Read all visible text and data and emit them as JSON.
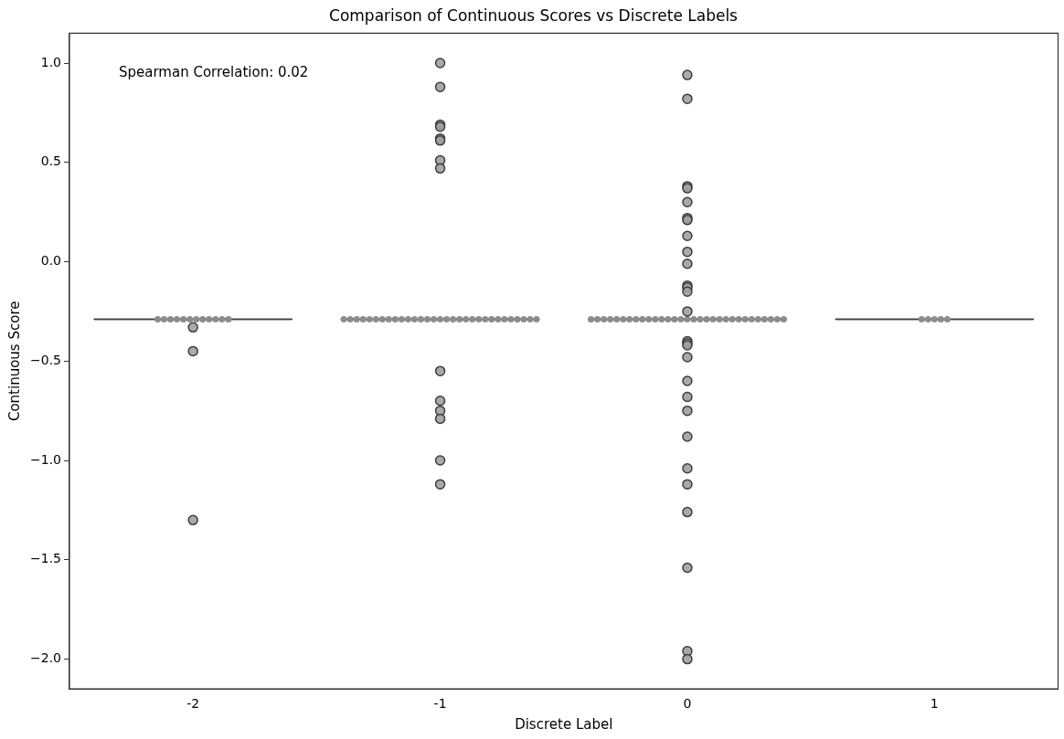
{
  "chart_data": {
    "type": "box",
    "title": "Comparison of Continuous Scores vs Discrete Labels",
    "xlabel": "Discrete Label",
    "ylabel": "Continuous Score",
    "categories": [
      "-2",
      "-1",
      "0",
      "1"
    ],
    "boxes": [
      {
        "low": -0.29,
        "q1": -0.29,
        "median": -0.29,
        "q3": -0.29,
        "high": -0.29,
        "outliers": [
          -0.33,
          -0.45,
          -1.3
        ]
      },
      {
        "low": -0.29,
        "q1": -0.29,
        "median": -0.29,
        "q3": -0.29,
        "high": -0.29,
        "outliers": [
          1.0,
          0.88,
          0.69,
          0.68,
          0.62,
          0.61,
          0.51,
          0.47,
          -0.55,
          -0.7,
          -0.75,
          -0.79,
          -1.0,
          -1.12
        ]
      },
      {
        "low": -0.29,
        "q1": -0.29,
        "median": -0.29,
        "q3": -0.29,
        "high": -0.29,
        "outliers": [
          0.94,
          0.82,
          0.38,
          0.37,
          0.3,
          0.22,
          0.21,
          0.13,
          0.05,
          -0.01,
          -0.12,
          -0.13,
          -0.15,
          -0.25,
          -0.4,
          -0.41,
          -0.42,
          -0.48,
          -0.6,
          -0.68,
          -0.75,
          -0.88,
          -1.04,
          -1.12,
          -1.26,
          -1.54,
          -1.96,
          -2.0
        ]
      },
      {
        "low": -0.29,
        "q1": -0.29,
        "median": -0.29,
        "q3": -0.29,
        "high": -0.29
      }
    ],
    "series": [
      {
        "type": "scatter",
        "color": "#8c8c8c",
        "x": [
          "-2",
          "-2",
          "-2",
          "-2",
          "-2",
          "-2",
          "-2",
          "-2",
          "-2",
          "-2",
          "-2",
          "-2",
          "-1",
          "-1",
          "-1",
          "-1",
          "-1",
          "-1",
          "-1",
          "-1",
          "-1",
          "-1",
          "-1",
          "-1",
          "-1",
          "-1",
          "-1",
          "-1",
          "-1",
          "-1",
          "-1",
          "-1",
          "-1",
          "-1",
          "-1",
          "-1",
          "-1",
          "-1",
          "-1",
          "-1",
          "-1",
          "-1",
          "-1",
          "0",
          "0",
          "0",
          "0",
          "0",
          "0",
          "0",
          "0",
          "0",
          "0",
          "0",
          "0",
          "0",
          "0",
          "0",
          "0",
          "0",
          "0",
          "0",
          "0",
          "0",
          "0",
          "0",
          "0",
          "0",
          "0",
          "0",
          "0",
          "0",
          "0",
          "0",
          "1",
          "1",
          "1",
          "1",
          "1"
        ],
        "values": [
          -0.29,
          -0.29,
          -0.29,
          -0.29,
          -0.29,
          -0.29,
          -0.29,
          -0.29,
          -0.29,
          -0.29,
          -0.29,
          -0.29,
          -0.29,
          -0.29,
          -0.29,
          -0.29,
          -0.29,
          -0.29,
          -0.29,
          -0.29,
          -0.29,
          -0.29,
          -0.29,
          -0.29,
          -0.29,
          -0.29,
          -0.29,
          -0.29,
          -0.29,
          -0.29,
          -0.29,
          -0.29,
          -0.29,
          -0.29,
          -0.29,
          -0.29,
          -0.29,
          -0.29,
          -0.29,
          -0.29,
          -0.29,
          -0.29,
          -0.29,
          -0.29,
          -0.29,
          -0.29,
          -0.29,
          -0.29,
          -0.29,
          -0.29,
          -0.29,
          -0.29,
          -0.29,
          -0.29,
          -0.29,
          -0.29,
          -0.29,
          -0.29,
          -0.29,
          -0.29,
          -0.29,
          -0.29,
          -0.29,
          -0.29,
          -0.29,
          -0.29,
          -0.29,
          -0.29,
          -0.29,
          -0.29,
          -0.29,
          -0.29,
          -0.29,
          -0.29,
          -0.29,
          -0.29,
          -0.29,
          -0.29,
          -0.29
        ]
      }
    ],
    "ylim": [
      -2.15,
      1.15
    ],
    "yticks": [
      {
        "value": -2,
        "label": "−2.0"
      },
      {
        "value": -1.5,
        "label": "−1.5"
      },
      {
        "value": -1,
        "label": "−1.0"
      },
      {
        "value": -0.5,
        "label": "−0.5"
      },
      {
        "value": 0,
        "label": "0.0"
      },
      {
        "value": 0.5,
        "label": "0.5"
      },
      {
        "value": 1,
        "label": "1.0"
      }
    ],
    "grid": false,
    "legend": false,
    "marker": "circle",
    "annotations": [
      "Spearman Correlation: 0.02"
    ]
  }
}
